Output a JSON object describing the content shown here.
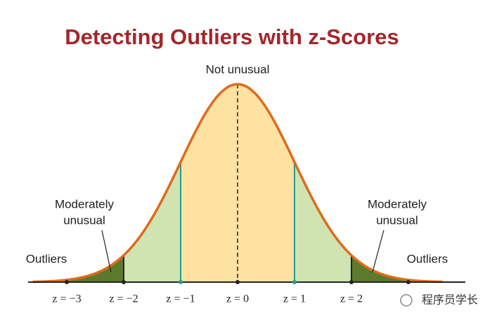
{
  "title": "Detecting Outliers with z-Scores",
  "labels": {
    "center": "Not unusual",
    "moderate_left": [
      "Moderately",
      "unusual"
    ],
    "moderate_right": [
      "Moderately",
      "unusual"
    ],
    "outliers_left": "Outliers",
    "outliers_right": "Outliers"
  },
  "axis": {
    "ticks": [
      "z = −3",
      "z = −2",
      "z = −1",
      "z = 0",
      "z = 1",
      "z = 2"
    ]
  },
  "watermark": "程序员学长"
}
